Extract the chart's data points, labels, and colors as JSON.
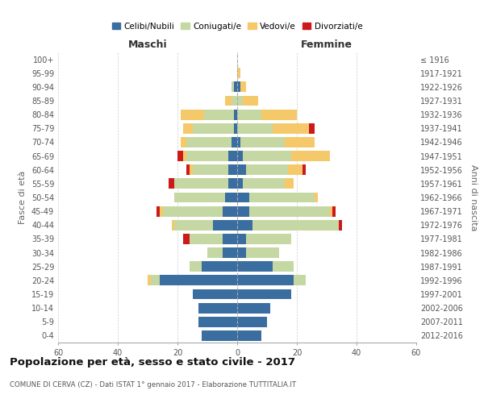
{
  "age_groups": [
    "0-4",
    "5-9",
    "10-14",
    "15-19",
    "20-24",
    "25-29",
    "30-34",
    "35-39",
    "40-44",
    "45-49",
    "50-54",
    "55-59",
    "60-64",
    "65-69",
    "70-74",
    "75-79",
    "80-84",
    "85-89",
    "90-94",
    "95-99",
    "100+"
  ],
  "birth_years": [
    "2012-2016",
    "2007-2011",
    "2002-2006",
    "1997-2001",
    "1992-1996",
    "1987-1991",
    "1982-1986",
    "1977-1981",
    "1972-1976",
    "1967-1971",
    "1962-1966",
    "1957-1961",
    "1952-1956",
    "1947-1951",
    "1942-1946",
    "1937-1941",
    "1932-1936",
    "1927-1931",
    "1922-1926",
    "1917-1921",
    "≤ 1916"
  ],
  "maschi": {
    "celibi": [
      12,
      13,
      13,
      15,
      26,
      12,
      5,
      5,
      8,
      5,
      4,
      3,
      3,
      3,
      2,
      1,
      1,
      0,
      1,
      0,
      0
    ],
    "coniugati": [
      0,
      0,
      0,
      0,
      3,
      4,
      5,
      11,
      13,
      20,
      17,
      18,
      12,
      14,
      15,
      14,
      10,
      2,
      1,
      0,
      0
    ],
    "vedovi": [
      0,
      0,
      0,
      0,
      1,
      0,
      0,
      0,
      1,
      1,
      0,
      0,
      1,
      1,
      2,
      3,
      8,
      2,
      0,
      0,
      0
    ],
    "divorziati": [
      0,
      0,
      0,
      0,
      0,
      0,
      0,
      2,
      0,
      1,
      0,
      2,
      1,
      2,
      0,
      0,
      0,
      0,
      0,
      0,
      0
    ]
  },
  "femmine": {
    "nubili": [
      8,
      10,
      11,
      18,
      19,
      12,
      3,
      3,
      5,
      4,
      4,
      2,
      3,
      2,
      1,
      0,
      0,
      0,
      1,
      0,
      0
    ],
    "coniugate": [
      0,
      0,
      0,
      0,
      4,
      7,
      11,
      15,
      29,
      27,
      22,
      14,
      14,
      16,
      15,
      12,
      8,
      2,
      0,
      0,
      0
    ],
    "vedove": [
      0,
      0,
      0,
      0,
      0,
      0,
      0,
      0,
      0,
      1,
      1,
      3,
      5,
      13,
      10,
      12,
      12,
      5,
      2,
      1,
      0
    ],
    "divorziate": [
      0,
      0,
      0,
      0,
      0,
      0,
      0,
      0,
      1,
      1,
      0,
      0,
      1,
      0,
      0,
      2,
      0,
      0,
      0,
      0,
      0
    ]
  },
  "colors": {
    "celibi": "#3a6da0",
    "coniugati": "#c5d8a4",
    "vedovi": "#f5c96a",
    "divorziati": "#cc1a1a"
  },
  "xlim": 60,
  "title": "Popolazione per età, sesso e stato civile - 2017",
  "subtitle": "COMUNE DI CERVA (CZ) - Dati ISTAT 1° gennaio 2017 - Elaborazione TUTTITALIA.IT",
  "ylabel_left": "Fasce di età",
  "ylabel_right": "Anni di nascita",
  "legend_labels": [
    "Celibi/Nubili",
    "Coniugati/e",
    "Vedovi/e",
    "Divorziati/e"
  ]
}
